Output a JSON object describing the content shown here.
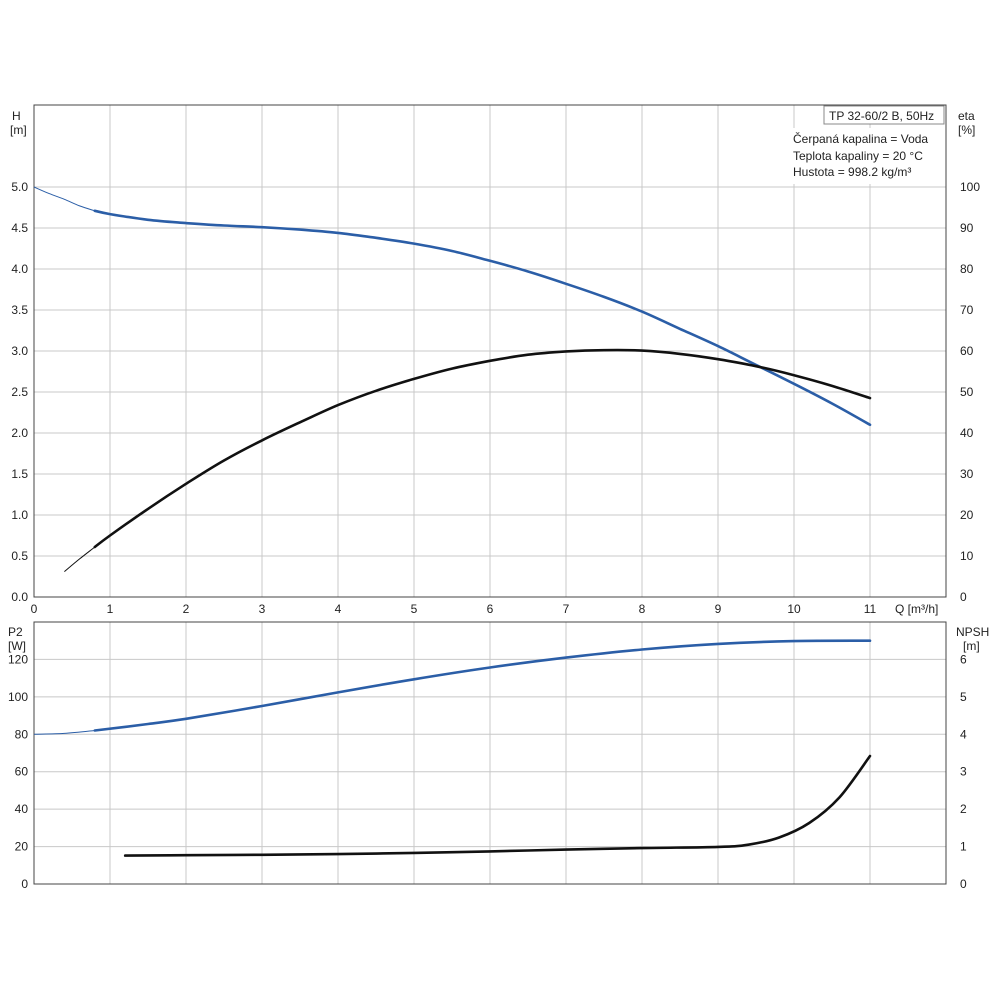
{
  "info": {
    "pump_model": "TP 32-60/2 B, 50Hz",
    "liquid": "Čerpaná kapalina = Voda",
    "temperature": "Teplota kapaliny = 20 °C",
    "density": "Hustota = 998.2 kg/m³"
  },
  "colors": {
    "blue": "#2b5ea7",
    "black": "#111111",
    "grid": "#c8c8c8"
  },
  "chart_data": [
    {
      "type": "line",
      "panel": "top",
      "xlabel": "Q [m³/h]",
      "x_ticks": [
        0,
        1,
        2,
        3,
        4,
        5,
        6,
        7,
        8,
        9,
        10,
        11
      ],
      "xlim": [
        0,
        12
      ],
      "left_axis": {
        "label_top": "H",
        "label_unit": "[m]",
        "ylim": [
          0,
          6.0
        ],
        "ticks": [
          0,
          0.5,
          1.0,
          1.5,
          2.0,
          2.5,
          3.0,
          3.5,
          4.0,
          4.5,
          5.0
        ],
        "tick_labels": [
          "0.0",
          "0.5",
          "1.0",
          "1.5",
          "2.0",
          "2.5",
          "3.0",
          "3.5",
          "4.0",
          "4.5",
          "5.0"
        ]
      },
      "right_axis": {
        "label_top": "eta",
        "label_unit": "[%]",
        "ylim": [
          0,
          120
        ],
        "ticks": [
          0,
          10,
          20,
          30,
          40,
          50,
          60,
          70,
          80,
          90,
          100
        ],
        "tick_labels": [
          "0",
          "10",
          "20",
          "30",
          "40",
          "50",
          "60",
          "70",
          "80",
          "90",
          "100"
        ]
      },
      "series": [
        {
          "axis": "left",
          "color": "blue",
          "thin_x": [
            0,
            0.2,
            0.4,
            0.6,
            0.8
          ],
          "thin_y": [
            5.0,
            4.92,
            4.85,
            4.77,
            4.71
          ],
          "x": [
            0.8,
            1.0,
            1.5,
            2.0,
            2.5,
            3.0,
            3.5,
            4.0,
            4.5,
            5.0,
            5.5,
            6.0,
            6.5,
            7.0,
            7.5,
            8.0,
            8.5,
            9.0,
            9.5,
            10.0,
            10.5,
            11.0
          ],
          "y": [
            4.71,
            4.67,
            4.6,
            4.56,
            4.53,
            4.51,
            4.48,
            4.44,
            4.38,
            4.31,
            4.22,
            4.1,
            3.97,
            3.82,
            3.66,
            3.48,
            3.27,
            3.06,
            2.83,
            2.6,
            2.36,
            2.1
          ]
        },
        {
          "axis": "right",
          "color": "black",
          "thin_x": [
            0.4,
            0.6,
            0.8
          ],
          "thin_y": [
            6.2,
            9.3,
            12.2
          ],
          "x": [
            0.8,
            1.0,
            1.5,
            2.0,
            2.5,
            3.0,
            3.5,
            4.0,
            4.5,
            5.0,
            5.5,
            6.0,
            6.5,
            7.0,
            7.5,
            8.0,
            8.5,
            9.0,
            9.5,
            10.0,
            10.5,
            11.0
          ],
          "y": [
            12.2,
            15.0,
            21.5,
            27.6,
            33.3,
            38.2,
            42.6,
            46.8,
            50.3,
            53.2,
            55.7,
            57.6,
            59.1,
            59.9,
            60.2,
            60.1,
            59.3,
            58.0,
            56.3,
            54.1,
            51.5,
            48.5
          ]
        }
      ]
    },
    {
      "type": "line",
      "panel": "bottom",
      "left_axis": {
        "label_top": "P2",
        "label_unit": "[W]",
        "ylim": [
          0,
          140
        ],
        "ticks": [
          0,
          20,
          40,
          60,
          80,
          100,
          120
        ],
        "tick_labels": [
          "0",
          "20",
          "40",
          "60",
          "80",
          "100",
          "120"
        ]
      },
      "right_axis": {
        "label_top": "NPSH",
        "label_unit": "[m]",
        "ylim": [
          0,
          7
        ],
        "ticks": [
          0,
          1,
          2,
          3,
          4,
          5,
          6
        ],
        "tick_labels": [
          "0",
          "1",
          "2",
          "3",
          "4",
          "5",
          "6"
        ]
      },
      "series": [
        {
          "axis": "left",
          "color": "blue",
          "thin_x": [
            0,
            0.4,
            0.8
          ],
          "thin_y": [
            80.0,
            80.5,
            82.0
          ],
          "x": [
            0.8,
            1.5,
            2.0,
            3.0,
            4.0,
            5.0,
            6.0,
            7.0,
            8.0,
            9.0,
            10.0,
            11.0
          ],
          "y": [
            82.0,
            85.5,
            88.3,
            95.1,
            102.4,
            109.4,
            115.7,
            121.0,
            125.3,
            128.3,
            129.8,
            130.0
          ]
        },
        {
          "axis": "right",
          "color": "black",
          "x": [
            1.2,
            2.0,
            3.0,
            4.0,
            5.0,
            6.0,
            7.0,
            8.0,
            9.0,
            9.4,
            9.8,
            10.2,
            10.6,
            11.0
          ],
          "y": [
            0.76,
            0.77,
            0.78,
            0.8,
            0.83,
            0.87,
            0.92,
            0.96,
            0.99,
            1.05,
            1.24,
            1.63,
            2.32,
            3.42
          ]
        }
      ]
    }
  ]
}
